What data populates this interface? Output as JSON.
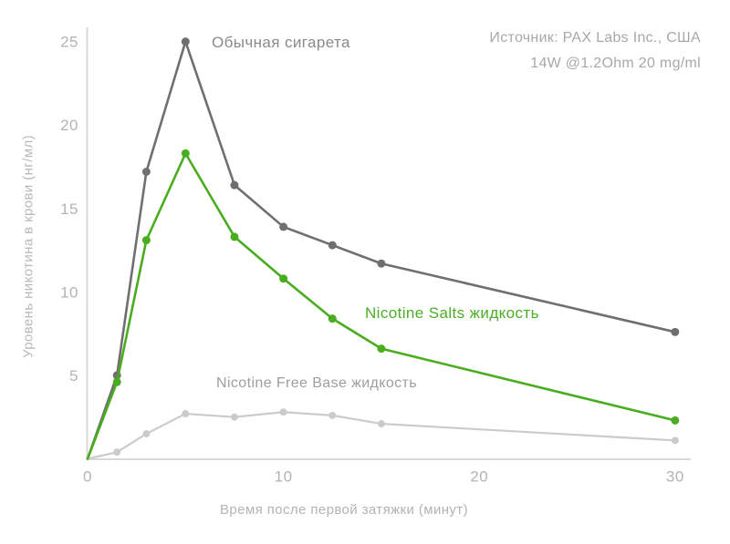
{
  "chart_data": {
    "type": "line",
    "title": "",
    "x": [
      0,
      1.5,
      3,
      5,
      7.5,
      10,
      12.5,
      15,
      30
    ],
    "series": [
      {
        "name": "Обычная сигарета",
        "color": "#716e6e",
        "label_color": "#8a8a8a",
        "point_radius": 4.5,
        "line_width": 2.6,
        "values": [
          0,
          5.0,
          17.2,
          25.0,
          16.4,
          13.9,
          12.8,
          11.7,
          7.6
        ]
      },
      {
        "name": "Nicotine Free Base жидкость",
        "color": "#cbcbcb",
        "label_color": "#9e9e9e",
        "point_radius": 4,
        "line_width": 2.2,
        "values": [
          0,
          0.4,
          1.5,
          2.7,
          2.5,
          2.8,
          2.6,
          2.1,
          1.1
        ]
      },
      {
        "name": "Nicotine Salts жидкость",
        "color": "#49ad1f",
        "label_color": "#4bae27",
        "point_radius": 4.5,
        "line_width": 2.6,
        "values": [
          0,
          4.6,
          13.1,
          18.3,
          13.3,
          10.8,
          8.4,
          6.6,
          2.3
        ]
      }
    ],
    "xlabel": "Время после первой затяжки (минут)",
    "ylabel": "Уровень никотина в крови (нг/мл)",
    "xlim": [
      0,
      30.8
    ],
    "ylim": [
      0,
      25.8
    ],
    "x_ticks": [
      0,
      10,
      20,
      30
    ],
    "y_ticks": [
      5,
      10,
      15,
      20,
      25
    ],
    "grid": false,
    "legend_position": "inline-annotations",
    "axis_color": "#d9d9d9",
    "tick_color": "#b3b3b3"
  },
  "source": {
    "line1": "Источник: PAX Labs Inc., США",
    "line2": "14W @1.2Ohm 20 mg/ml"
  }
}
